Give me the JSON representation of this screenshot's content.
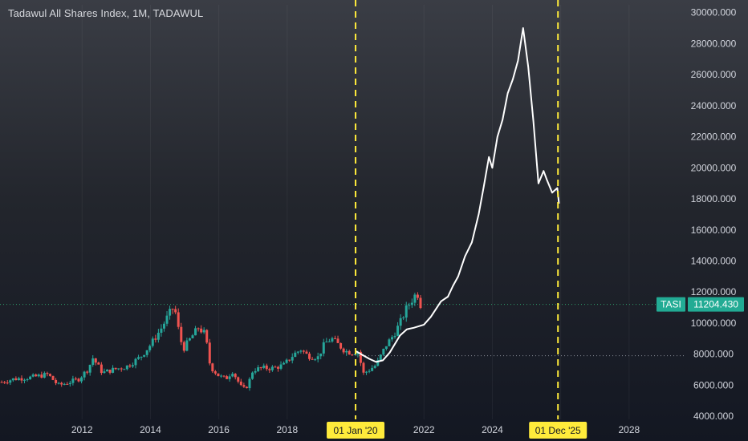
{
  "header": {
    "title": "Tadawul All Shares Index, 1M, TADAWUL"
  },
  "price_tag": {
    "symbol": "TASI",
    "value": "11204.430"
  },
  "markers": [
    {
      "label": "01 Jan '20",
      "x": 2020.0
    },
    {
      "label": "01 Dec '25",
      "x": 2025.92
    }
  ],
  "colors": {
    "up": "#26a69a",
    "down": "#ef5350",
    "projection": "#ffffff",
    "marker_line": "#ffeb3b",
    "marker_label_bg": "#ffeb3b",
    "price_tag_bg": "#22ab94",
    "axis_text": "#d1d4dc"
  },
  "chart_data": {
    "type": "line",
    "xlabel": "",
    "ylabel": "",
    "xlim": [
      2009.6,
      2029.6
    ],
    "ylim": [
      3800,
      30500
    ],
    "x_ticks": [
      2012,
      2014,
      2016,
      2018,
      2022,
      2024,
      2026,
      2028
    ],
    "x_tick_labels": [
      "2012",
      "2014",
      "2016",
      "2018",
      "2022",
      "2024",
      "",
      "2028"
    ],
    "y_ticks": [
      4000,
      6000,
      8000,
      10000,
      12000,
      14000,
      16000,
      18000,
      20000,
      22000,
      24000,
      26000,
      28000,
      30000
    ],
    "y_tick_labels": [
      "4000.000",
      "6000.000",
      "8000.000",
      "10000.000",
      "12000.000",
      "14000.000",
      "16000.000",
      "18000.000",
      "20000.000",
      "22000.000",
      "24000.000",
      "26000.000",
      "28000.000",
      "30000.000"
    ],
    "reference_lines": [
      {
        "y": 11204.43,
        "style": "dotted-green"
      },
      {
        "y": 7900,
        "style": "dotted-gray"
      }
    ],
    "series": [
      {
        "name": "TASI",
        "kind": "candlestick-close",
        "x": [
          2009.65,
          2010.0,
          2010.5,
          2011.0,
          2011.3,
          2011.5,
          2011.9,
          2012.2,
          2012.3,
          2012.6,
          2012.9,
          2013.3,
          2013.7,
          2014.0,
          2014.3,
          2014.55,
          2014.7,
          2014.8,
          2014.95,
          2015.2,
          2015.4,
          2015.6,
          2015.75,
          2016.0,
          2016.2,
          2016.4,
          2016.7,
          2016.85,
          2017.0,
          2017.3,
          2017.6,
          2017.9,
          2018.2,
          2018.4,
          2018.6,
          2018.9,
          2019.1,
          2019.3,
          2019.5,
          2019.7,
          2019.9,
          2020.1,
          2020.2,
          2020.4,
          2020.6,
          2020.9,
          2021.1,
          2021.3,
          2021.5,
          2021.65,
          2021.8,
          2021.9
        ],
        "values": [
          6200,
          6400,
          6500,
          6700,
          6000,
          6100,
          6400,
          7100,
          7800,
          6800,
          7000,
          7200,
          7800,
          8600,
          9600,
          10600,
          11100,
          9800,
          8300,
          9100,
          9700,
          9300,
          7200,
          6600,
          6400,
          6900,
          5700,
          6000,
          7000,
          7100,
          7100,
          7300,
          8000,
          8300,
          7900,
          7800,
          8700,
          9000,
          8600,
          8200,
          8100,
          8200,
          6700,
          7000,
          7300,
          8600,
          9200,
          10000,
          11000,
          11500,
          12000,
          11204
        ]
      },
      {
        "name": "projection",
        "x": [
          2020.0,
          2020.4,
          2020.6,
          2020.8,
          2021.0,
          2021.3,
          2021.5,
          2021.7,
          2022.0,
          2022.2,
          2022.5,
          2022.7,
          2022.85,
          2023.0,
          2023.2,
          2023.4,
          2023.6,
          2023.75,
          2023.9,
          2024.0,
          2024.15,
          2024.3,
          2024.45,
          2024.6,
          2024.75,
          2024.9,
          2025.05,
          2025.2,
          2025.35,
          2025.5,
          2025.6,
          2025.75,
          2025.9,
          2025.95
        ],
        "values": [
          8200,
          7700,
          7500,
          7600,
          8100,
          9200,
          9600,
          9700,
          9900,
          10400,
          11400,
          11700,
          12400,
          13000,
          14300,
          15200,
          17000,
          18800,
          20700,
          20000,
          22000,
          23100,
          24800,
          25700,
          26900,
          29000,
          26500,
          23000,
          19000,
          19800,
          19200,
          18400,
          18700,
          17700
        ]
      }
    ]
  }
}
